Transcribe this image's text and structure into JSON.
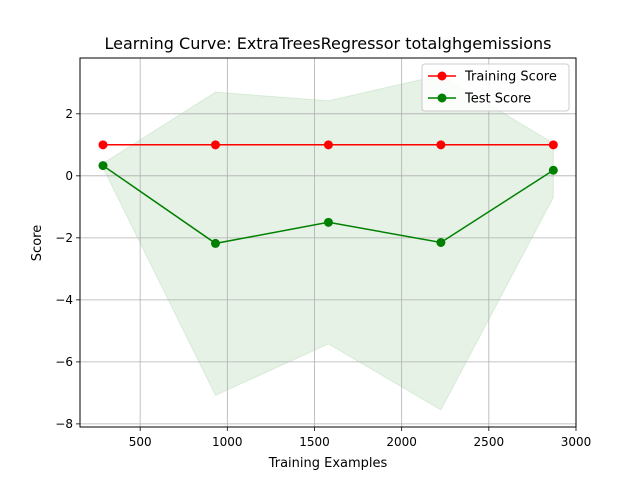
{
  "chart_data": {
    "type": "line",
    "title": "Learning Curve: ExtraTreesRegressor totalghgemissions",
    "xlabel": "Training Examples",
    "ylabel": "Score",
    "xlim": [
      155,
      3000
    ],
    "ylim": [
      -8.1,
      3.8
    ],
    "xticks": [
      500,
      1000,
      1500,
      2000,
      2500,
      3000
    ],
    "yticks": [
      -8,
      -6,
      -4,
      -2,
      0,
      2
    ],
    "xtick_labels": [
      "500",
      "1000",
      "1500",
      "2000",
      "2500",
      "3000"
    ],
    "ytick_labels": [
      "−8",
      "−6",
      "−4",
      "−2",
      "0",
      "2"
    ],
    "grid": true,
    "legend_position": "top-right",
    "x": [
      287,
      932,
      1580,
      2225,
      2870
    ],
    "series": [
      {
        "name": "Training Score",
        "color": "#ff0000",
        "values": [
          1.0,
          1.0,
          1.0,
          1.0,
          1.0
        ],
        "band_upper": [
          1.0,
          1.0,
          1.0,
          1.0,
          1.0
        ],
        "band_lower": [
          1.0,
          1.0,
          1.0,
          1.0,
          1.0
        ],
        "band_color": "#ff0000"
      },
      {
        "name": "Test Score",
        "color": "#008000",
        "values": [
          0.33,
          -2.18,
          -1.5,
          -2.15,
          0.18
        ],
        "band_upper": [
          0.4,
          2.7,
          2.42,
          3.25,
          1.05
        ],
        "band_lower": [
          0.26,
          -7.08,
          -5.42,
          -7.55,
          -0.7
        ],
        "band_color": "#008000"
      }
    ]
  }
}
